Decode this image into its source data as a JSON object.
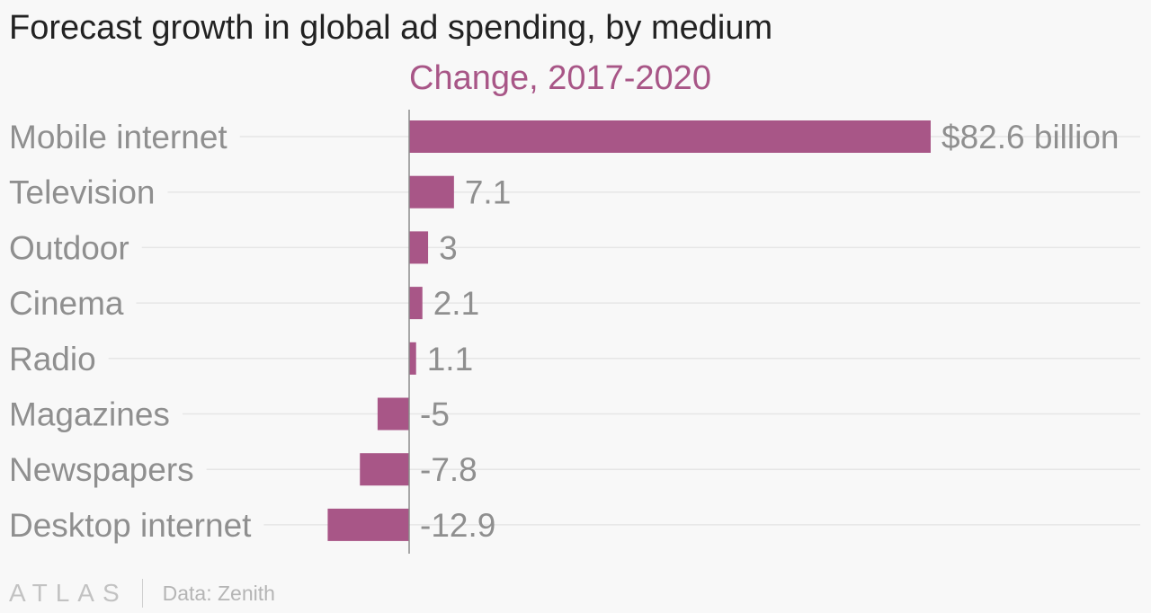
{
  "title": "Forecast growth in global ad spending, by medium",
  "subtitle": "Change, 2017-2020",
  "colors": {
    "bar": "#a85687",
    "subtitle": "#a85687",
    "label": "#8f8f8f",
    "grid": "#e6e6e6",
    "axis": "#8c8c8c"
  },
  "footer": {
    "logo": "ATLAS",
    "source": "Data: Zenith"
  },
  "chart_data": {
    "type": "bar",
    "orientation": "horizontal",
    "title": "Forecast growth in global ad spending, by medium",
    "subtitle": "Change, 2017-2020",
    "categories": [
      "Mobile internet",
      "Television",
      "Outdoor",
      "Cinema",
      "Radio",
      "Magazines",
      "Newspapers",
      "Desktop internet"
    ],
    "values": [
      82.6,
      7.1,
      3,
      2.1,
      1.1,
      -5,
      -7.8,
      -12.9
    ],
    "data_labels": [
      "$82.6 billion",
      "7.1",
      "3",
      "2.1",
      "1.1",
      "-5",
      "-7.8",
      "-12.9"
    ],
    "unit": "$ billion",
    "xlim": [
      -12.9,
      82.6
    ],
    "grid": true,
    "legend": "none"
  }
}
